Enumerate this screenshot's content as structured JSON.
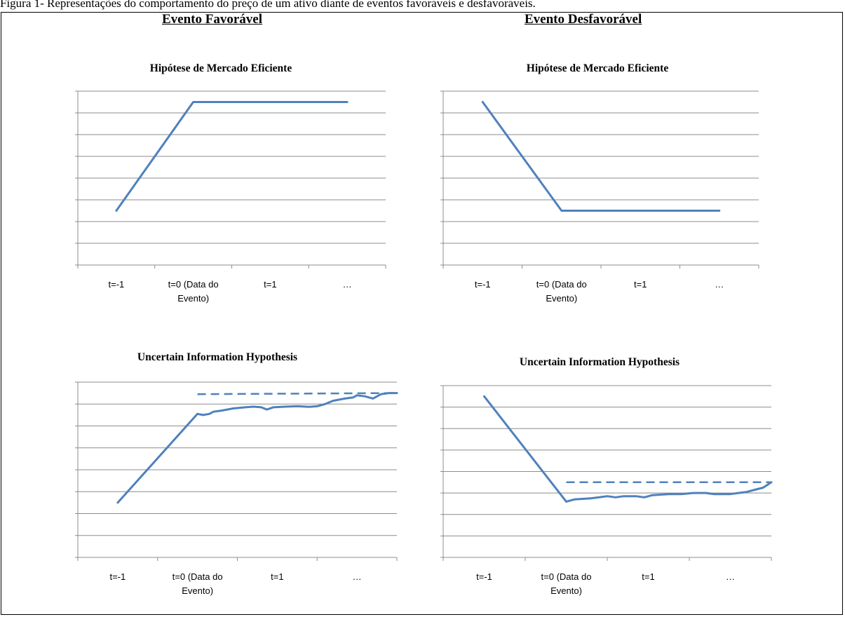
{
  "figure": {
    "caption": "Figura 1- Representações do comportamento do preço de um ativo diante de eventos favoráveis e desfavoráveis."
  },
  "columns": {
    "left": "Evento Favorável",
    "right": "Evento Desfavorável"
  },
  "colors": {
    "series": "#4f81bd",
    "gridline": "#8c8c8c",
    "axis": "#8c8c8c"
  },
  "chart_data": [
    {
      "type": "line",
      "title": "Hipótese de Mercado Eficiente",
      "categories": [
        "t=-1",
        "t=0 (Data do Evento)",
        "t=1",
        "…"
      ],
      "ylim": [
        0,
        8
      ],
      "grid": true,
      "series": [
        {
          "style": "solid",
          "points": [
            [
              0,
              2.5
            ],
            [
              1.0,
              7.5
            ],
            [
              3.0,
              7.5
            ]
          ]
        }
      ]
    },
    {
      "type": "line",
      "title": "Hipótese de Mercado Eficiente",
      "categories": [
        "t=-1",
        "t=0 (Data do Evento)",
        "t=1",
        "…"
      ],
      "ylim": [
        0,
        8
      ],
      "grid": true,
      "series": [
        {
          "style": "solid",
          "points": [
            [
              0,
              7.5
            ],
            [
              1.0,
              2.5
            ],
            [
              3.0,
              2.5
            ]
          ]
        }
      ]
    },
    {
      "type": "line",
      "title": "Uncertain Information Hypothesis",
      "categories": [
        "t=-1",
        "t=0 (Data do Evento)",
        "t=1",
        "…"
      ],
      "ylim": [
        0,
        8
      ],
      "grid": true,
      "series": [
        {
          "style": "solid",
          "points": [
            [
              0,
              2.5
            ],
            [
              1.0,
              6.55
            ],
            [
              1.07,
              6.5
            ],
            [
              1.15,
              6.55
            ],
            [
              1.2,
              6.65
            ],
            [
              1.3,
              6.7
            ],
            [
              1.45,
              6.8
            ],
            [
              1.6,
              6.85
            ],
            [
              1.7,
              6.88
            ],
            [
              1.8,
              6.85
            ],
            [
              1.87,
              6.75
            ],
            [
              1.95,
              6.85
            ],
            [
              2.1,
              6.88
            ],
            [
              2.25,
              6.9
            ],
            [
              2.4,
              6.87
            ],
            [
              2.5,
              6.9
            ],
            [
              2.6,
              7.0
            ],
            [
              2.7,
              7.15
            ],
            [
              2.85,
              7.25
            ],
            [
              2.95,
              7.3
            ],
            [
              3.0,
              7.4
            ],
            [
              3.1,
              7.35
            ],
            [
              3.2,
              7.25
            ],
            [
              3.3,
              7.45
            ],
            [
              3.4,
              7.5
            ],
            [
              3.5,
              7.5
            ]
          ]
        },
        {
          "style": "dashed",
          "points": [
            [
              1.0,
              7.45
            ],
            [
              3.5,
              7.5
            ]
          ]
        }
      ]
    },
    {
      "type": "line",
      "title": "Uncertain Information Hypothesis",
      "categories": [
        "t=-1",
        "t=0 (Data do Evento)",
        "t=1",
        "…"
      ],
      "ylim": [
        0,
        8
      ],
      "grid": true,
      "series": [
        {
          "style": "solid",
          "points": [
            [
              0,
              7.5
            ],
            [
              1.0,
              2.6
            ],
            [
              1.1,
              2.7
            ],
            [
              1.3,
              2.75
            ],
            [
              1.4,
              2.8
            ],
            [
              1.5,
              2.85
            ],
            [
              1.6,
              2.8
            ],
            [
              1.7,
              2.85
            ],
            [
              1.85,
              2.85
            ],
            [
              1.95,
              2.8
            ],
            [
              2.05,
              2.9
            ],
            [
              2.25,
              2.95
            ],
            [
              2.4,
              2.95
            ],
            [
              2.55,
              3.0
            ],
            [
              2.7,
              3.0
            ],
            [
              2.8,
              2.95
            ],
            [
              3.0,
              2.95
            ],
            [
              3.1,
              3.0
            ],
            [
              3.2,
              3.05
            ],
            [
              3.3,
              3.15
            ],
            [
              3.4,
              3.25
            ],
            [
              3.5,
              3.5
            ]
          ]
        },
        {
          "style": "dashed",
          "points": [
            [
              1.0,
              3.5
            ],
            [
              3.5,
              3.5
            ]
          ]
        }
      ]
    }
  ]
}
